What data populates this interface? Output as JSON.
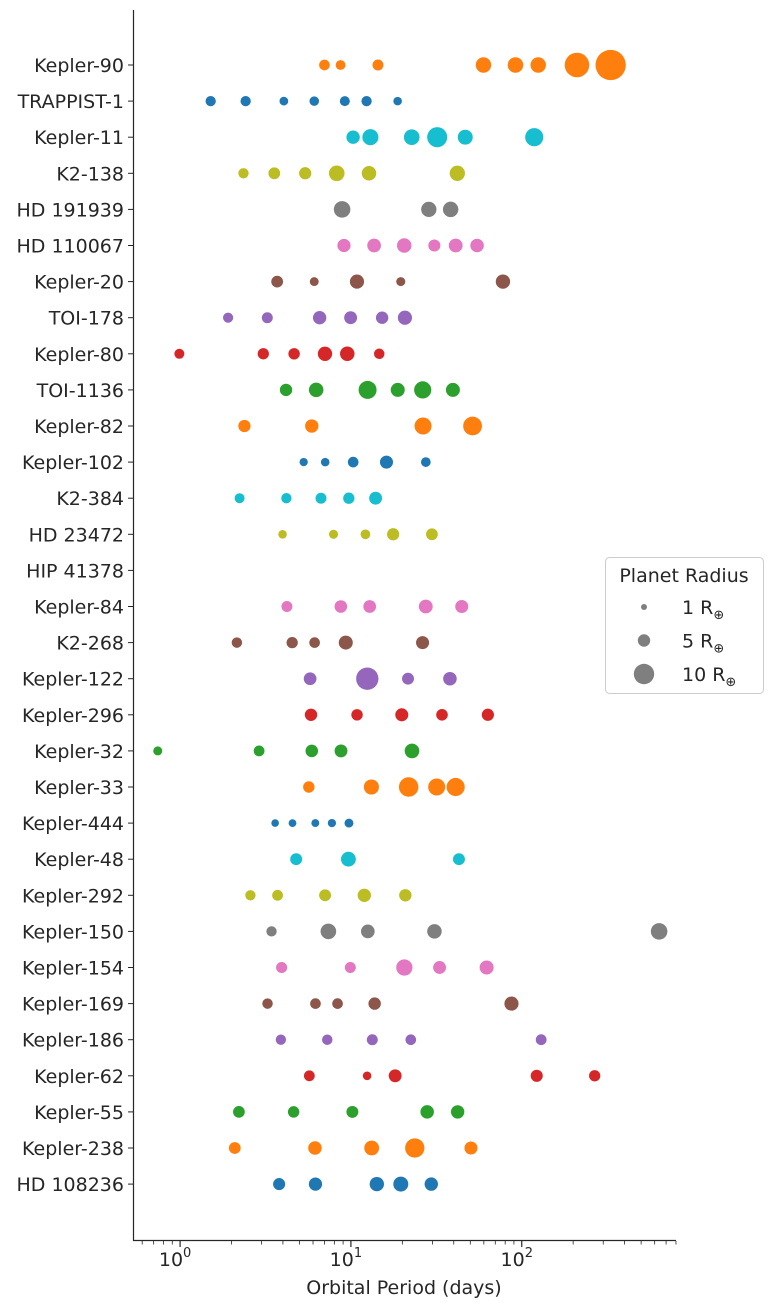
{
  "chart_data": {
    "type": "scatter",
    "xlabel": "Orbital Period (days)",
    "xscale": "log",
    "xlim": [
      0.53,
      800
    ],
    "x_ticks": [
      {
        "value": 1,
        "base": "10",
        "exp": "0"
      },
      {
        "value": 10,
        "base": "10",
        "exp": "1"
      },
      {
        "value": 100,
        "base": "10",
        "exp": "2"
      }
    ],
    "grid": false,
    "legend": {
      "title": "Planet Radius",
      "placement": "right",
      "entries": [
        {
          "radius": 1,
          "label": "1 R",
          "sub": "⊕"
        },
        {
          "radius": 5,
          "label": "5 R",
          "sub": "⊕"
        },
        {
          "radius": 10,
          "label": "10 R",
          "sub": "⊕"
        }
      ]
    },
    "series": [
      {
        "name": "Kepler-90",
        "color": "#ff7f0e",
        "planets": [
          [
            7.0,
            3.9
          ],
          [
            8.7,
            3.4
          ],
          [
            14.4,
            4.1
          ],
          [
            59.7,
            6.9
          ],
          [
            91.9,
            7.0
          ],
          [
            124.9,
            6.9
          ],
          [
            210.6,
            12.6
          ],
          [
            331.6,
            16.2
          ]
        ]
      },
      {
        "name": "TRAPPIST-1",
        "color": "#1f77b4",
        "planets": [
          [
            1.51,
            3.7
          ],
          [
            2.42,
            3.7
          ],
          [
            4.05,
            2.7
          ],
          [
            6.1,
            3.2
          ],
          [
            9.21,
            3.5
          ],
          [
            12.35,
            3.7
          ],
          [
            18.77,
            2.6
          ]
        ]
      },
      {
        "name": "Kepler-11",
        "color": "#17becf",
        "planets": [
          [
            10.3,
            5.6
          ],
          [
            13.0,
            7.3
          ],
          [
            22.7,
            7.0
          ],
          [
            32.0,
            9.8
          ],
          [
            46.7,
            6.6
          ],
          [
            118.4,
            8.6
          ]
        ]
      },
      {
        "name": "K2-138",
        "color": "#bcbd22",
        "planets": [
          [
            2.35,
            3.7
          ],
          [
            3.56,
            4.6
          ],
          [
            5.4,
            4.9
          ],
          [
            8.26,
            7.0
          ],
          [
            12.76,
            6.3
          ],
          [
            41.97,
            6.8
          ]
        ]
      },
      {
        "name": "HD 191939",
        "color": "#7f7f7f",
        "planets": [
          [
            8.88,
            7.6
          ],
          [
            28.58,
            6.8
          ],
          [
            38.35,
            6.9
          ]
        ]
      },
      {
        "name": "HD 110067",
        "color": "#e377c2",
        "planets": [
          [
            9.11,
            5.5
          ],
          [
            13.67,
            5.8
          ],
          [
            20.52,
            6.3
          ],
          [
            30.79,
            4.8
          ],
          [
            41.06,
            5.9
          ],
          [
            54.77,
            5.7
          ]
        ]
      },
      {
        "name": "Kepler-20",
        "color": "#8c564b",
        "planets": [
          [
            3.7,
            4.6
          ],
          [
            6.1,
            2.8
          ],
          [
            10.85,
            6.1
          ],
          [
            19.58,
            2.9
          ],
          [
            77.61,
            6.2
          ]
        ]
      },
      {
        "name": "TOI-178",
        "color": "#9467bd",
        "planets": [
          [
            1.91,
            3.6
          ],
          [
            3.24,
            4.1
          ],
          [
            6.56,
            5.6
          ],
          [
            9.96,
            5.3
          ],
          [
            15.23,
            5.0
          ],
          [
            20.71,
            6.1
          ]
        ]
      },
      {
        "name": "Kepler-80",
        "color": "#d62728",
        "planets": [
          [
            0.99,
            3.5
          ],
          [
            3.07,
            4.3
          ],
          [
            4.65,
            4.4
          ],
          [
            7.05,
            6.2
          ],
          [
            9.52,
            6.3
          ],
          [
            14.65,
            3.8
          ]
        ]
      },
      {
        "name": "TOI-1136",
        "color": "#2ca02c",
        "planets": [
          [
            4.17,
            5.0
          ],
          [
            6.26,
            6.3
          ],
          [
            12.52,
            8.5
          ],
          [
            18.8,
            6.0
          ],
          [
            26.32,
            8.0
          ],
          [
            39.54,
            6.0
          ]
        ]
      },
      {
        "name": "Kepler-82",
        "color": "#ff7f0e",
        "planets": [
          [
            2.38,
            4.9
          ],
          [
            5.9,
            5.6
          ],
          [
            26.44,
            7.9
          ],
          [
            51.54,
            9.0
          ]
        ]
      },
      {
        "name": "Kepler-102",
        "color": "#1f77b4",
        "planets": [
          [
            5.29,
            2.4
          ],
          [
            7.07,
            2.6
          ],
          [
            10.31,
            3.9
          ],
          [
            16.15,
            5.4
          ],
          [
            27.45,
            3.3
          ]
        ]
      },
      {
        "name": "K2-384",
        "color": "#17becf",
        "planets": [
          [
            2.23,
            3.5
          ],
          [
            4.19,
            3.7
          ],
          [
            6.68,
            4.1
          ],
          [
            9.72,
            4.3
          ],
          [
            13.95,
            5.3
          ]
        ]
      },
      {
        "name": "HD 23472",
        "color": "#bcbd22",
        "planets": [
          [
            3.98,
            2.6
          ],
          [
            7.91,
            2.9
          ],
          [
            12.16,
            3.3
          ],
          [
            17.67,
            4.9
          ],
          [
            29.8,
            4.6
          ]
        ]
      },
      {
        "name": "HIP 41378",
        "color": "#e377c2",
        "planets": []
      },
      {
        "name": "Kepler-84",
        "color": "#e377c2",
        "planets": [
          [
            4.22,
            4.1
          ],
          [
            8.73,
            5.1
          ],
          [
            12.88,
            5.2
          ],
          [
            27.43,
            5.9
          ],
          [
            44.55,
            5.4
          ]
        ]
      },
      {
        "name": "K2-268",
        "color": "#8c564b",
        "planets": [
          [
            2.15,
            3.8
          ],
          [
            4.53,
            4.3
          ],
          [
            6.13,
            3.9
          ],
          [
            9.33,
            6.0
          ],
          [
            26.27,
            5.4
          ]
        ]
      },
      {
        "name": "Kepler-122",
        "color": "#9467bd",
        "planets": [
          [
            5.77,
            5.2
          ],
          [
            12.47,
            11.2
          ],
          [
            21.59,
            4.7
          ],
          [
            37.99,
            5.7
          ]
        ]
      },
      {
        "name": "Kepler-296",
        "color": "#d62728",
        "planets": [
          [
            5.84,
            5.0
          ],
          [
            10.86,
            4.4
          ],
          [
            19.85,
            5.4
          ],
          [
            34.14,
            4.5
          ],
          [
            63.34,
            4.9
          ]
        ]
      },
      {
        "name": "Kepler-32",
        "color": "#2ca02c",
        "planets": [
          [
            0.74,
            2.9
          ],
          [
            2.9,
            4.0
          ],
          [
            5.9,
            5.1
          ],
          [
            8.75,
            5.3
          ],
          [
            22.78,
            6.4
          ]
        ]
      },
      {
        "name": "Kepler-33",
        "color": "#ff7f0e",
        "planets": [
          [
            5.67,
            4.4
          ],
          [
            13.18,
            6.7
          ],
          [
            21.78,
            9.4
          ],
          [
            31.78,
            7.9
          ],
          [
            41.03,
            8.6
          ]
        ]
      },
      {
        "name": "Kepler-444",
        "color": "#1f77b4",
        "planets": [
          [
            3.6,
            2.0
          ],
          [
            4.55,
            2.1
          ],
          [
            6.19,
            2.2
          ],
          [
            7.74,
            2.4
          ],
          [
            9.74,
            2.8
          ]
        ]
      },
      {
        "name": "Kepler-48",
        "color": "#17becf",
        "planets": [
          [
            4.78,
            4.7
          ],
          [
            9.67,
            6.5
          ],
          [
            42.9,
            4.7
          ]
        ]
      },
      {
        "name": "Kepler-292",
        "color": "#bcbd22",
        "planets": [
          [
            2.58,
            3.7
          ],
          [
            3.72,
            4.0
          ],
          [
            7.06,
            4.7
          ],
          [
            11.98,
            5.6
          ],
          [
            20.83,
            5.0
          ]
        ]
      },
      {
        "name": "Kepler-150",
        "color": "#7f7f7f",
        "planets": [
          [
            3.43,
            3.7
          ],
          [
            7.38,
            7.0
          ],
          [
            12.56,
            5.8
          ],
          [
            30.83,
            6.3
          ],
          [
            637.2,
            7.6
          ]
        ]
      },
      {
        "name": "Kepler-154",
        "color": "#e377c2",
        "planets": [
          [
            3.93,
            4.2
          ],
          [
            9.92,
            4.1
          ],
          [
            20.55,
            7.4
          ],
          [
            33.04,
            5.3
          ],
          [
            62.3,
            6.0
          ]
        ]
      },
      {
        "name": "Kepler-169",
        "color": "#8c564b",
        "planets": [
          [
            3.25,
            3.8
          ],
          [
            6.2,
            3.9
          ],
          [
            8.35,
            3.9
          ],
          [
            13.77,
            5.0
          ],
          [
            87.09,
            6.1
          ]
        ]
      },
      {
        "name": "Kepler-186",
        "color": "#9467bd",
        "planets": [
          [
            3.89,
            3.7
          ],
          [
            7.27,
            3.8
          ],
          [
            13.34,
            4.1
          ],
          [
            22.41,
            3.9
          ],
          [
            129.94,
            4.0
          ]
        ]
      },
      {
        "name": "Kepler-62",
        "color": "#d62728",
        "planets": [
          [
            5.71,
            4.0
          ],
          [
            12.44,
            2.6
          ],
          [
            18.16,
            5.3
          ],
          [
            122.39,
            4.8
          ],
          [
            267.29,
            4.3
          ]
        ]
      },
      {
        "name": "Kepler-55",
        "color": "#2ca02c",
        "planets": [
          [
            2.21,
            4.6
          ],
          [
            4.62,
            4.4
          ],
          [
            10.2,
            4.7
          ],
          [
            27.95,
            5.7
          ],
          [
            42.15,
            5.6
          ]
        ]
      },
      {
        "name": "Kepler-238",
        "color": "#ff7f0e",
        "planets": [
          [
            2.09,
            4.6
          ],
          [
            6.16,
            5.7
          ],
          [
            13.23,
            6.5
          ],
          [
            23.65,
            9.3
          ],
          [
            50.45,
            5.4
          ]
        ]
      },
      {
        "name": "HD 108236",
        "color": "#1f77b4",
        "planets": [
          [
            3.8,
            4.8
          ],
          [
            6.2,
            5.5
          ],
          [
            14.18,
            6.2
          ],
          [
            19.59,
            6.6
          ],
          [
            29.54,
            5.6
          ]
        ]
      }
    ]
  }
}
